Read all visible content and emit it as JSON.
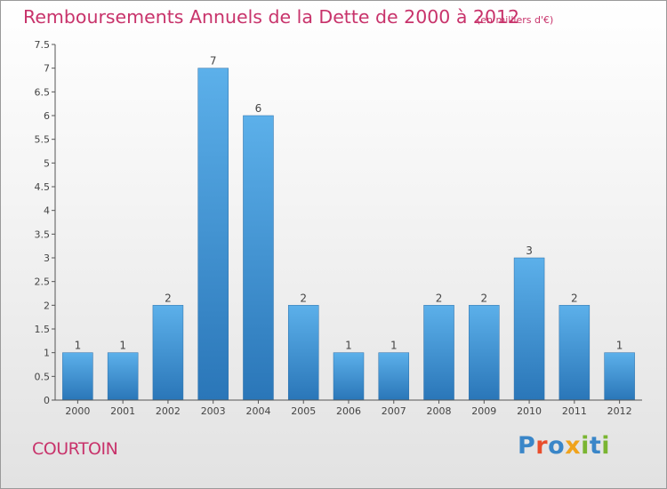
{
  "header": {
    "title": "Remboursements Annuels de la Dette de 2000 à 2012",
    "unit": "(en milliers d'€)"
  },
  "commune": "COURTOIN",
  "brand": {
    "letters": [
      {
        "ch": "P",
        "color": "#3a86c8"
      },
      {
        "ch": "r",
        "color": "#e94e2c"
      },
      {
        "ch": "o",
        "color": "#3a86c8"
      },
      {
        "ch": "x",
        "color": "#f0a31c"
      },
      {
        "ch": "i",
        "color": "#7ab532"
      },
      {
        "ch": "t",
        "color": "#3a86c8"
      },
      {
        "ch": "i",
        "color": "#7ab532"
      }
    ]
  },
  "chart_data": {
    "type": "bar",
    "title": "Remboursements Annuels de la Dette de 2000 à 2012",
    "categories": [
      "2000",
      "2001",
      "2002",
      "2003",
      "2004",
      "2005",
      "2006",
      "2007",
      "2008",
      "2009",
      "2010",
      "2011",
      "2012"
    ],
    "values": [
      1,
      1,
      2,
      7,
      6,
      2,
      1,
      1,
      2,
      2,
      3,
      2,
      1
    ],
    "ylim": [
      0,
      7.5
    ],
    "yticks": [
      "0",
      "0.5",
      "1",
      "1.5",
      "2",
      "2.5",
      "3",
      "3.5",
      "4",
      "4.5",
      "5",
      "5.5",
      "6",
      "6.5",
      "7",
      "7.5"
    ],
    "grid": false,
    "bar_color": "#3d8fd4"
  }
}
